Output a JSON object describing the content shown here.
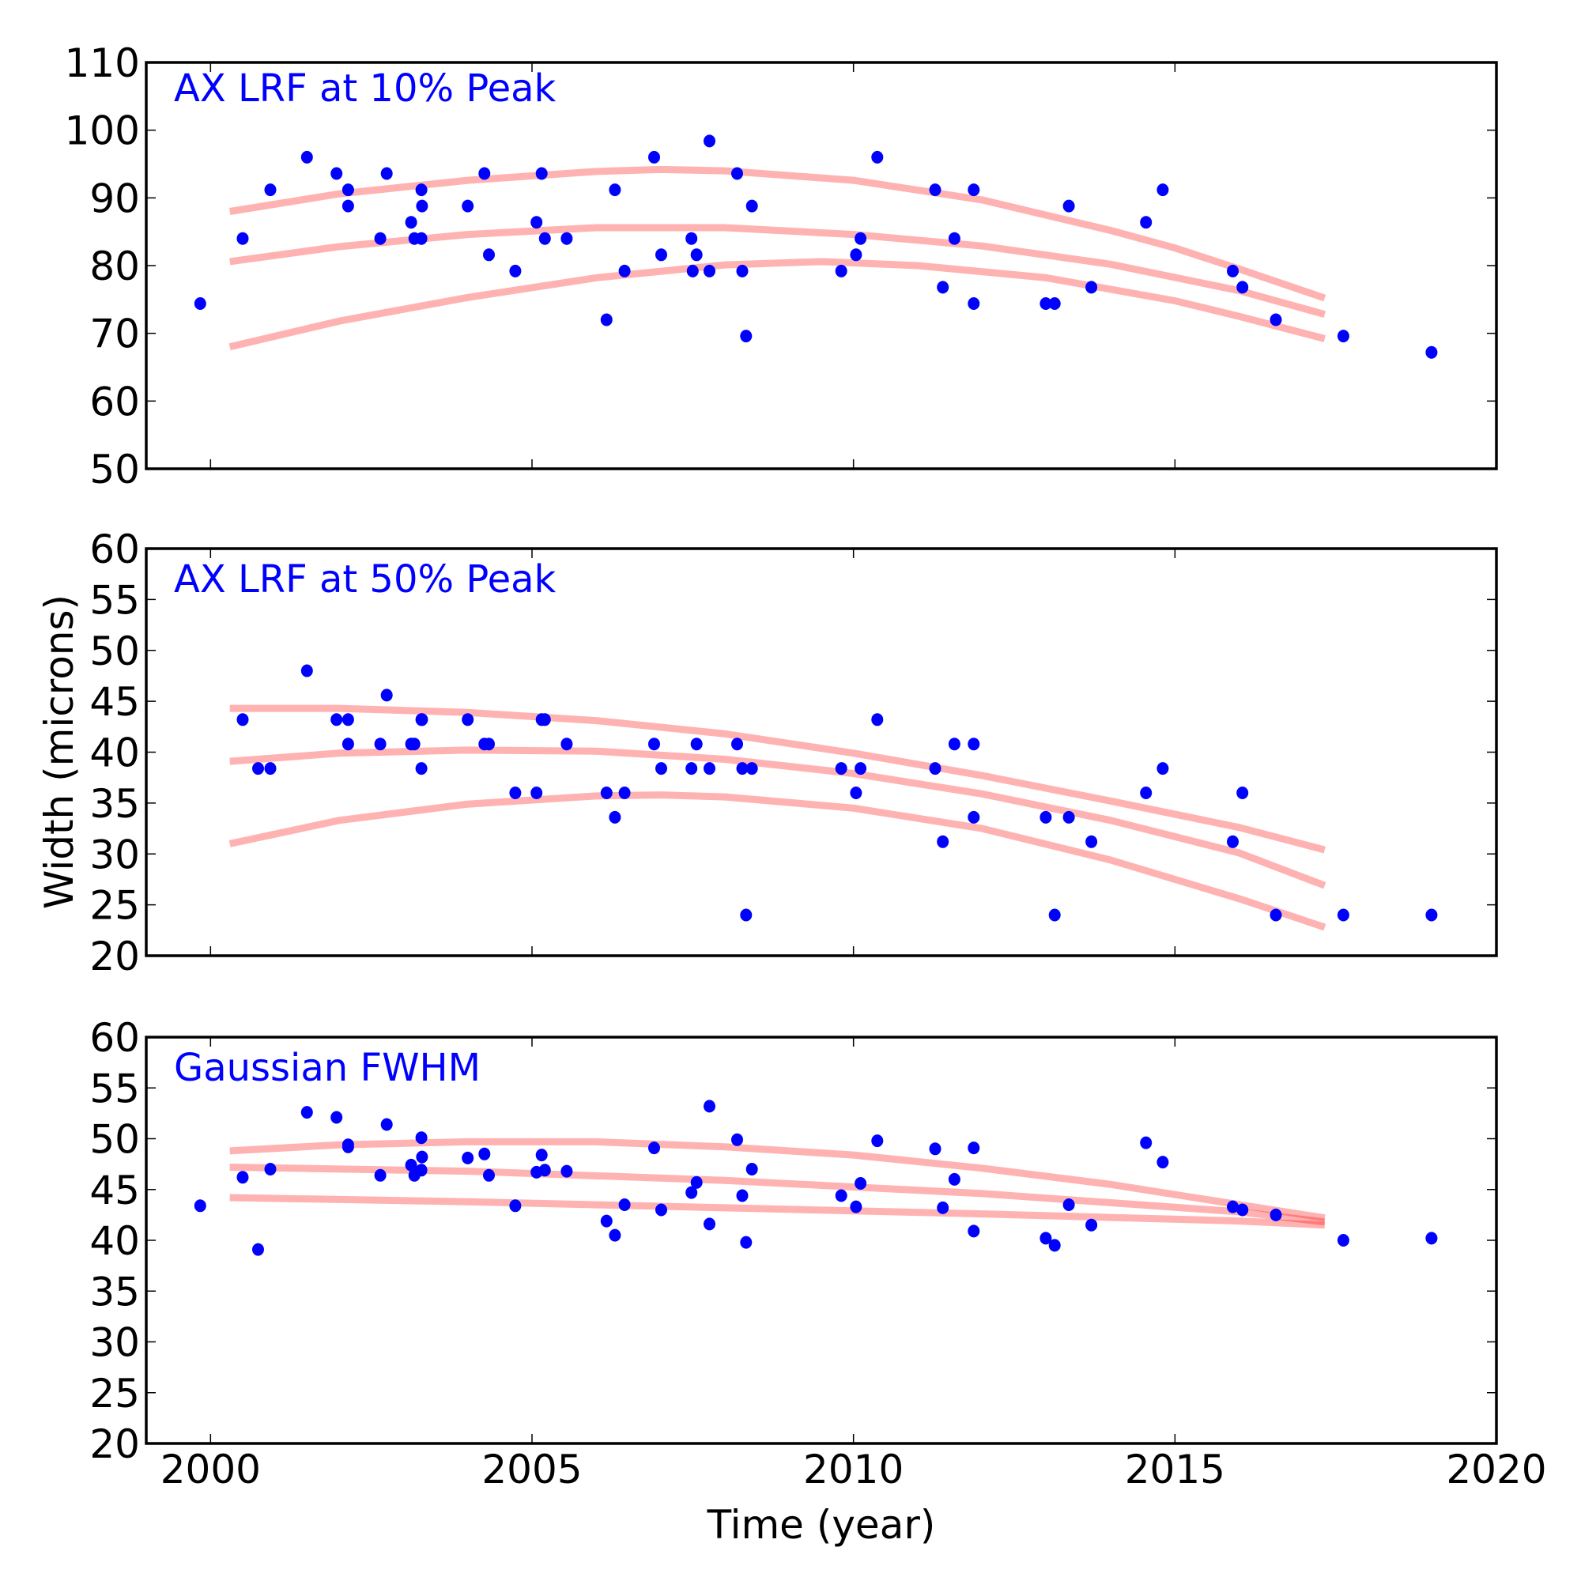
{
  "chart_data": {
    "type": "scatter",
    "xlabel": "Time (year)",
    "ylabel": "Width (microns)",
    "xlim": [
      1999,
      2020
    ],
    "xticks": [
      "2000",
      "2005",
      "2010",
      "2015",
      "2020"
    ],
    "grid": false,
    "colors": {
      "points": "#0000ff",
      "fit_lines": "#ff0000",
      "title": "#0000ff",
      "axes": "#000000"
    },
    "panels": [
      {
        "title": "AX LRF at 10% Peak",
        "ylim": [
          50,
          110
        ],
        "yticks": [
          "50",
          "60",
          "70",
          "80",
          "90",
          "100",
          "110"
        ],
        "points": [
          [
            1999.84,
            74.4
          ],
          [
            2000.5,
            84.0
          ],
          [
            2000.93,
            91.2
          ],
          [
            2001.5,
            96.0
          ],
          [
            2001.96,
            93.6
          ],
          [
            2002.14,
            91.2
          ],
          [
            2002.14,
            88.8
          ],
          [
            2002.64,
            84.0
          ],
          [
            2002.74,
            93.6
          ],
          [
            2003.12,
            86.4
          ],
          [
            2003.17,
            84.0
          ],
          [
            2003.28,
            91.2
          ],
          [
            2003.29,
            88.8
          ],
          [
            2003.28,
            84.0
          ],
          [
            2004.0,
            88.8
          ],
          [
            2004.26,
            93.6
          ],
          [
            2004.33,
            81.6
          ],
          [
            2004.74,
            79.2
          ],
          [
            2005.07,
            86.4
          ],
          [
            2005.15,
            93.6
          ],
          [
            2005.2,
            84.0
          ],
          [
            2005.54,
            84.0
          ],
          [
            2006.16,
            72.0
          ],
          [
            2006.29,
            91.2
          ],
          [
            2006.44,
            79.2
          ],
          [
            2006.9,
            96.0
          ],
          [
            2007.01,
            81.6
          ],
          [
            2007.48,
            84.0
          ],
          [
            2007.5,
            79.2
          ],
          [
            2007.56,
            81.6
          ],
          [
            2007.76,
            98.4
          ],
          [
            2007.76,
            79.2
          ],
          [
            2008.19,
            93.6
          ],
          [
            2008.27,
            79.2
          ],
          [
            2008.33,
            69.6
          ],
          [
            2008.42,
            88.8
          ],
          [
            2009.81,
            79.2
          ],
          [
            2010.04,
            81.6
          ],
          [
            2010.11,
            84.0
          ],
          [
            2010.37,
            96.0
          ],
          [
            2011.27,
            91.2
          ],
          [
            2011.39,
            76.8
          ],
          [
            2011.57,
            84.0
          ],
          [
            2011.87,
            91.2
          ],
          [
            2011.87,
            74.4
          ],
          [
            2012.99,
            74.4
          ],
          [
            2013.13,
            74.4
          ],
          [
            2013.35,
            88.8
          ],
          [
            2013.7,
            76.8
          ],
          [
            2014.55,
            86.4
          ],
          [
            2014.81,
            91.2
          ],
          [
            2015.9,
            79.2
          ],
          [
            2016.05,
            76.8
          ],
          [
            2016.57,
            72.0
          ],
          [
            2017.62,
            69.6
          ],
          [
            2018.99,
            67.2
          ]
        ],
        "fit_lines": [
          {
            "name": "upper",
            "x": [
              2000.3,
              2002,
              2004,
              2006,
              2007,
              2008,
              2010,
              2012,
              2014,
              2015,
              2016,
              2017.33
            ],
            "y": [
              88.0,
              90.6,
              92.6,
              93.9,
              94.2,
              94.0,
              92.6,
              89.7,
              85.2,
              82.6,
              79.5,
              75.2
            ]
          },
          {
            "name": "middle",
            "x": [
              2000.3,
              2002,
              2004,
              2006,
              2008,
              2010,
              2012,
              2014,
              2016,
              2017.33
            ],
            "y": [
              80.6,
              82.8,
              84.6,
              85.6,
              85.6,
              84.6,
              82.9,
              80.2,
              76.3,
              72.8
            ]
          },
          {
            "name": "lower",
            "x": [
              2000.3,
              2002,
              2004,
              2006,
              2008,
              2009.5,
              2011,
              2013,
              2015,
              2016,
              2017.33
            ],
            "y": [
              68.0,
              71.8,
              75.3,
              78.2,
              80.1,
              80.6,
              80.0,
              78.2,
              74.8,
              72.5,
              69.2
            ]
          }
        ]
      },
      {
        "title": "AX LRF at 50% Peak",
        "ylim": [
          20,
          60
        ],
        "yticks": [
          "20",
          "25",
          "30",
          "35",
          "40",
          "45",
          "50",
          "55",
          "60"
        ],
        "points": [
          [
            2000.5,
            43.2
          ],
          [
            2000.74,
            38.4
          ],
          [
            2000.93,
            38.4
          ],
          [
            2001.5,
            48.0
          ],
          [
            2001.96,
            43.2
          ],
          [
            2002.14,
            43.2
          ],
          [
            2002.14,
            40.8
          ],
          [
            2002.64,
            40.8
          ],
          [
            2002.74,
            45.6
          ],
          [
            2003.12,
            40.8
          ],
          [
            2003.17,
            40.8
          ],
          [
            2003.28,
            43.2
          ],
          [
            2003.29,
            43.2
          ],
          [
            2003.28,
            38.4
          ],
          [
            2004.0,
            43.2
          ],
          [
            2004.26,
            40.8
          ],
          [
            2004.33,
            40.8
          ],
          [
            2004.74,
            36.0
          ],
          [
            2005.07,
            36.0
          ],
          [
            2005.15,
            43.2
          ],
          [
            2005.2,
            43.2
          ],
          [
            2005.54,
            40.8
          ],
          [
            2006.16,
            36.0
          ],
          [
            2006.29,
            33.6
          ],
          [
            2006.44,
            36.0
          ],
          [
            2006.9,
            40.8
          ],
          [
            2007.01,
            38.4
          ],
          [
            2007.48,
            38.4
          ],
          [
            2007.56,
            40.8
          ],
          [
            2007.76,
            38.4
          ],
          [
            2008.19,
            40.8
          ],
          [
            2008.27,
            38.4
          ],
          [
            2008.33,
            24.0
          ],
          [
            2008.42,
            38.4
          ],
          [
            2009.81,
            38.4
          ],
          [
            2010.04,
            36.0
          ],
          [
            2010.11,
            38.4
          ],
          [
            2010.37,
            43.2
          ],
          [
            2011.27,
            38.4
          ],
          [
            2011.39,
            31.2
          ],
          [
            2011.57,
            40.8
          ],
          [
            2011.87,
            40.8
          ],
          [
            2011.87,
            33.6
          ],
          [
            2012.99,
            33.6
          ],
          [
            2013.13,
            24.0
          ],
          [
            2013.35,
            33.6
          ],
          [
            2013.7,
            31.2
          ],
          [
            2014.55,
            36.0
          ],
          [
            2014.81,
            38.4
          ],
          [
            2015.9,
            31.2
          ],
          [
            2016.05,
            36.0
          ],
          [
            2016.57,
            24.0
          ],
          [
            2017.62,
            24.0
          ],
          [
            2018.99,
            24.0
          ]
        ],
        "fit_lines": [
          {
            "name": "upper",
            "x": [
              2000.3,
              2002,
              2004,
              2006,
              2008,
              2010,
              2012,
              2014,
              2016,
              2017.33
            ],
            "y": [
              44.3,
              44.3,
              43.9,
              43.1,
              41.8,
              39.9,
              37.7,
              35.2,
              32.6,
              30.4
            ]
          },
          {
            "name": "middle",
            "x": [
              2000.3,
              2002,
              2004,
              2006,
              2008,
              2010,
              2012,
              2014,
              2016,
              2017.33
            ],
            "y": [
              39.1,
              39.9,
              40.2,
              40.1,
              39.3,
              37.9,
              35.9,
              33.3,
              30.1,
              26.9
            ]
          },
          {
            "name": "lower",
            "x": [
              2000.3,
              2002,
              2004,
              2006,
              2007,
              2008,
              2010,
              2012,
              2014,
              2016,
              2017.33
            ],
            "y": [
              31.0,
              33.3,
              34.9,
              35.7,
              35.8,
              35.6,
              34.5,
              32.5,
              29.4,
              25.6,
              22.8
            ]
          }
        ]
      },
      {
        "title": "Gaussian FWHM",
        "ylim": [
          20,
          60
        ],
        "yticks": [
          "20",
          "25",
          "30",
          "35",
          "40",
          "45",
          "50",
          "55",
          "60"
        ],
        "points": [
          [
            1999.84,
            43.4
          ],
          [
            2000.5,
            46.2
          ],
          [
            2000.74,
            39.1
          ],
          [
            2000.93,
            47.0
          ],
          [
            2001.5,
            52.6
          ],
          [
            2001.96,
            52.1
          ],
          [
            2002.14,
            49.4
          ],
          [
            2002.14,
            49.2
          ],
          [
            2002.64,
            46.4
          ],
          [
            2002.74,
            51.4
          ],
          [
            2003.12,
            47.4
          ],
          [
            2003.17,
            46.4
          ],
          [
            2003.28,
            50.1
          ],
          [
            2003.29,
            48.2
          ],
          [
            2003.28,
            46.9
          ],
          [
            2004.0,
            48.1
          ],
          [
            2004.26,
            48.5
          ],
          [
            2004.33,
            46.4
          ],
          [
            2004.74,
            43.4
          ],
          [
            2005.07,
            46.7
          ],
          [
            2005.15,
            48.4
          ],
          [
            2005.2,
            46.9
          ],
          [
            2005.54,
            46.8
          ],
          [
            2006.16,
            41.9
          ],
          [
            2006.29,
            40.5
          ],
          [
            2006.44,
            43.5
          ],
          [
            2006.9,
            49.1
          ],
          [
            2007.01,
            43.0
          ],
          [
            2007.48,
            44.7
          ],
          [
            2007.56,
            45.7
          ],
          [
            2007.76,
            53.2
          ],
          [
            2007.76,
            41.6
          ],
          [
            2008.19,
            49.9
          ],
          [
            2008.27,
            44.4
          ],
          [
            2008.33,
            39.8
          ],
          [
            2008.42,
            47.0
          ],
          [
            2009.81,
            44.4
          ],
          [
            2010.04,
            43.3
          ],
          [
            2010.11,
            45.6
          ],
          [
            2010.37,
            49.8
          ],
          [
            2011.27,
            49.0
          ],
          [
            2011.39,
            43.2
          ],
          [
            2011.57,
            46.0
          ],
          [
            2011.87,
            49.1
          ],
          [
            2011.87,
            40.9
          ],
          [
            2012.99,
            40.2
          ],
          [
            2013.13,
            39.5
          ],
          [
            2013.35,
            43.5
          ],
          [
            2013.7,
            41.5
          ],
          [
            2014.55,
            49.6
          ],
          [
            2014.81,
            47.7
          ],
          [
            2015.9,
            43.3
          ],
          [
            2016.05,
            43.0
          ],
          [
            2016.57,
            42.5
          ],
          [
            2017.62,
            40.0
          ],
          [
            2018.99,
            40.2
          ]
        ],
        "fit_lines": [
          {
            "name": "upper",
            "x": [
              2000.3,
              2002,
              2004,
              2006,
              2008,
              2010,
              2012,
              2014,
              2016,
              2017.33
            ],
            "y": [
              48.8,
              49.4,
              49.7,
              49.7,
              49.2,
              48.4,
              47.1,
              45.5,
              43.5,
              42.2
            ]
          },
          {
            "name": "middle",
            "x": [
              2000.3,
              2004,
              2008,
              2012,
              2016,
              2017.33
            ],
            "y": [
              47.2,
              46.8,
              45.9,
              44.6,
              42.8,
              41.8
            ]
          },
          {
            "name": "lower",
            "x": [
              2000.3,
              2004,
              2008,
              2012,
              2016,
              2017.33
            ],
            "y": [
              44.2,
              43.8,
              43.2,
              42.6,
              41.9,
              41.5
            ]
          }
        ]
      }
    ]
  }
}
